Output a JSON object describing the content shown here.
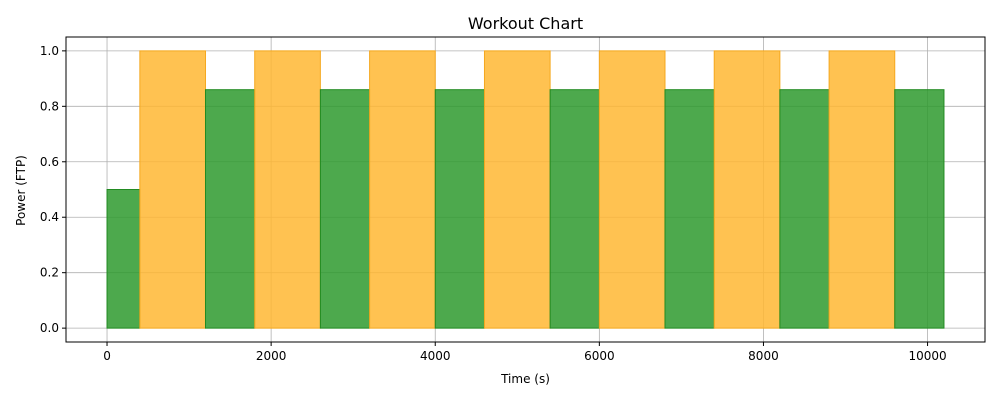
{
  "chart_data": {
    "type": "bar",
    "title": "Workout Chart",
    "xlabel": "Time (s)",
    "ylabel": "Power (FTP)",
    "xlim": [
      -500,
      10700
    ],
    "ylim": [
      -0.05,
      1.05
    ],
    "xticks": [
      0,
      2000,
      4000,
      6000,
      8000,
      10000
    ],
    "yticks": [
      0.0,
      0.2,
      0.4,
      0.6,
      0.8,
      1.0
    ],
    "xtick_labels": [
      "0",
      "2000",
      "4000",
      "6000",
      "8000",
      "10000"
    ],
    "ytick_labels": [
      "0.0",
      "0.2",
      "0.4",
      "0.6",
      "0.8",
      "1.0"
    ],
    "grid": true,
    "colors": {
      "green": "#2e9a2e",
      "green_edge": "#228b22",
      "orange": "#ffb733",
      "orange_edge": "#f5a81f",
      "grid": "#b0b0b0"
    },
    "intervals": [
      {
        "start": 0,
        "end": 400,
        "power": 0.5,
        "color": "green"
      },
      {
        "start": 400,
        "end": 1200,
        "power": 1.0,
        "color": "orange"
      },
      {
        "start": 1200,
        "end": 1800,
        "power": 0.86,
        "color": "green"
      },
      {
        "start": 1800,
        "end": 2600,
        "power": 1.0,
        "color": "orange"
      },
      {
        "start": 2600,
        "end": 3200,
        "power": 0.86,
        "color": "green"
      },
      {
        "start": 3200,
        "end": 4000,
        "power": 1.0,
        "color": "orange"
      },
      {
        "start": 4000,
        "end": 4600,
        "power": 0.86,
        "color": "green"
      },
      {
        "start": 4600,
        "end": 5400,
        "power": 1.0,
        "color": "orange"
      },
      {
        "start": 5400,
        "end": 6000,
        "power": 0.86,
        "color": "green"
      },
      {
        "start": 6000,
        "end": 6800,
        "power": 1.0,
        "color": "orange"
      },
      {
        "start": 6800,
        "end": 7400,
        "power": 0.86,
        "color": "green"
      },
      {
        "start": 7400,
        "end": 8200,
        "power": 1.0,
        "color": "orange"
      },
      {
        "start": 8200,
        "end": 8800,
        "power": 0.86,
        "color": "green"
      },
      {
        "start": 8800,
        "end": 9600,
        "power": 1.0,
        "color": "orange"
      },
      {
        "start": 9600,
        "end": 10200,
        "power": 0.86,
        "color": "green"
      }
    ]
  }
}
